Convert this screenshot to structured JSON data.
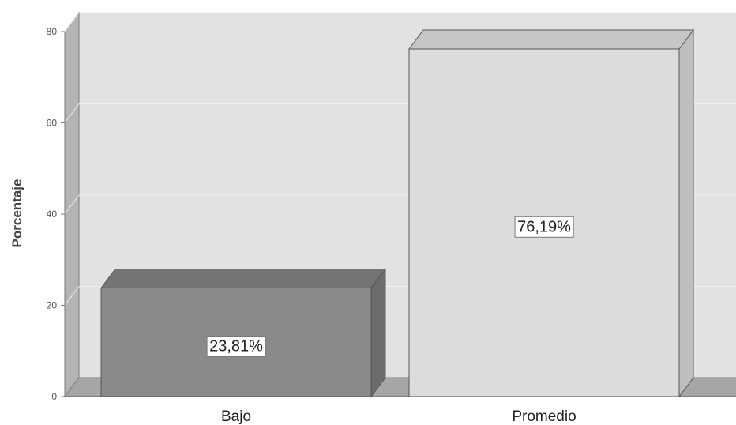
{
  "chart_data": {
    "type": "bar",
    "categories": [
      "Bajo",
      "Promedio"
    ],
    "values": [
      23.81,
      76.19
    ],
    "data_labels": [
      "23,81%",
      "76,19%"
    ],
    "ylabel": "Porcentaje",
    "xlabel": "",
    "ylim": [
      0,
      80
    ],
    "yticks": [
      0,
      20,
      40,
      60,
      80
    ],
    "ytick_labels": [
      "0",
      "20",
      "40",
      "60",
      "80"
    ],
    "grid": true,
    "legend": "none",
    "style": "3d",
    "colors": {
      "bars": [
        "#8a8a8a",
        "#dcdcdc"
      ],
      "plot_back": "#e2e2e2",
      "plot_wall_side": "#b4b4b4",
      "plot_floor": "#a6a6a6",
      "grid": "#f0f0f0"
    }
  }
}
